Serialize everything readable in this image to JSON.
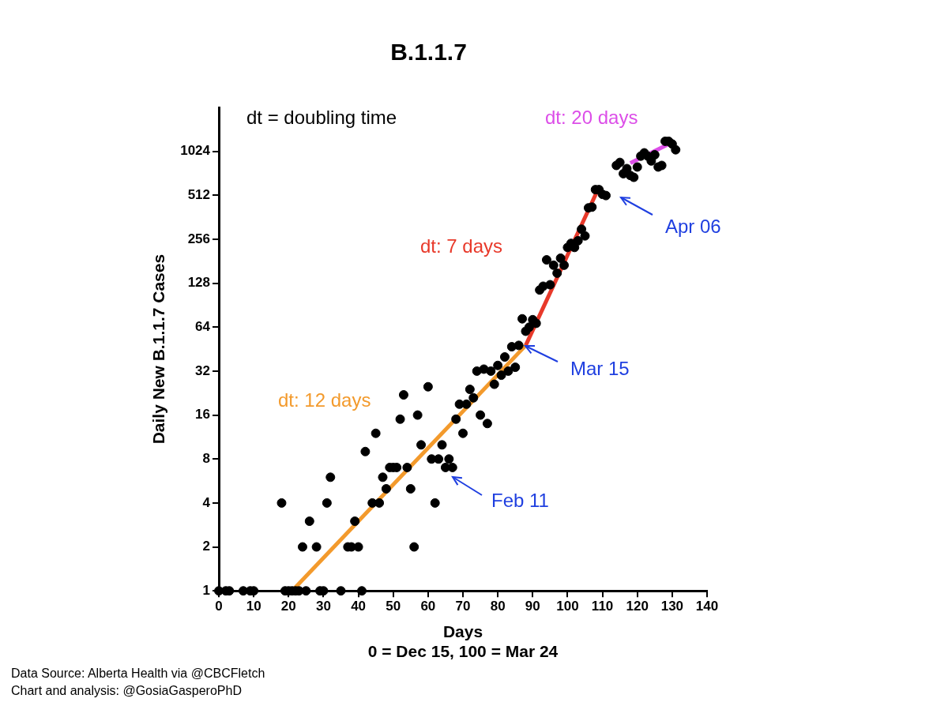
{
  "chart_data": {
    "type": "scatter",
    "title": "B.1.1.7",
    "y_label": "Daily New B.1.1.7 Cases",
    "x_label": "Days",
    "x_note": "0 = Dec 15, 100 = Mar 24",
    "log": "y",
    "grid": false,
    "xlim": [
      0,
      140
    ],
    "xticks": [
      0,
      10,
      20,
      30,
      40,
      50,
      60,
      70,
      80,
      90,
      100,
      110,
      120,
      130,
      140
    ],
    "ylim": [
      1,
      2048
    ],
    "yticks": [
      1,
      2,
      4,
      8,
      16,
      32,
      64,
      128,
      256,
      512,
      1024
    ],
    "points": {
      "color": "#000000",
      "marker": "circle",
      "x": [
        0,
        2,
        3,
        7,
        9,
        10,
        18,
        19,
        20,
        21,
        22,
        23,
        24,
        25,
        26,
        28,
        29,
        30,
        31,
        32,
        35,
        37,
        38,
        39,
        40,
        41,
        42,
        44,
        45,
        46,
        47,
        48,
        49,
        50,
        51,
        52,
        53,
        54,
        55,
        56,
        57,
        58,
        60,
        61,
        62,
        63,
        64,
        65,
        66,
        67,
        68,
        69,
        70,
        71,
        72,
        73,
        74,
        75,
        76,
        77,
        78,
        79,
        80,
        81,
        82,
        83,
        84,
        85,
        86,
        87,
        88,
        89,
        90,
        91,
        92,
        93,
        94,
        95,
        96,
        97,
        98,
        99,
        100,
        101,
        102,
        103,
        104,
        105,
        106,
        107,
        108,
        109,
        110,
        111,
        114,
        115,
        116,
        117,
        118,
        119,
        120,
        121,
        122,
        123,
        124,
        125,
        126,
        127,
        128,
        129,
        130,
        131
      ],
      "values": [
        1,
        1,
        1,
        1,
        1,
        1,
        4,
        1,
        1,
        1,
        1,
        1,
        2,
        1,
        3,
        2,
        1,
        1,
        4,
        6,
        1,
        2,
        2,
        3,
        2,
        1,
        9,
        4,
        12,
        4,
        6,
        5,
        7,
        7,
        7,
        15,
        22,
        7,
        5,
        2,
        16,
        10,
        25,
        8,
        4,
        8,
        10,
        7,
        8,
        7,
        15,
        19,
        12,
        19,
        24,
        21,
        32,
        16,
        33,
        14,
        32,
        26,
        35,
        30,
        40,
        32,
        47,
        34,
        48,
        73,
        60,
        64,
        72,
        68,
        115,
        122,
        185,
        125,
        170,
        150,
        190,
        170,
        225,
        240,
        225,
        250,
        300,
        270,
        420,
        425,
        560,
        560,
        520,
        510,
        820,
        860,
        720,
        780,
        700,
        680,
        800,
        950,
        1000,
        950,
        880,
        970,
        800,
        820,
        1200,
        1200,
        1150,
        1050
      ]
    },
    "fits": [
      {
        "label": "dt: 12 days",
        "color": "#f39a2c",
        "x": [
          21,
          88
        ],
        "values": [
          1,
          48
        ]
      },
      {
        "label": "dt: 7 days",
        "color": "#e8392a",
        "x": [
          88,
          109
        ],
        "values": [
          48,
          580
        ]
      },
      {
        "label": "dt: 20 days",
        "color": "#dc4ee8",
        "x": [
          118,
          130
        ],
        "values": [
          850,
          1180
        ]
      }
    ],
    "annotations": [
      {
        "text": "dt = doubling time",
        "color": "#000000"
      },
      {
        "text": "Feb 11",
        "color": "#1f3fe0"
      },
      {
        "text": "Mar 15",
        "color": "#1f3fe0"
      },
      {
        "text": "Apr 06",
        "color": "#1f3fe0"
      }
    ],
    "source": [
      "Data Source: Alberta Health via @CBCFletch",
      "Chart and analysis: @GosiaGasperoPhD"
    ]
  }
}
